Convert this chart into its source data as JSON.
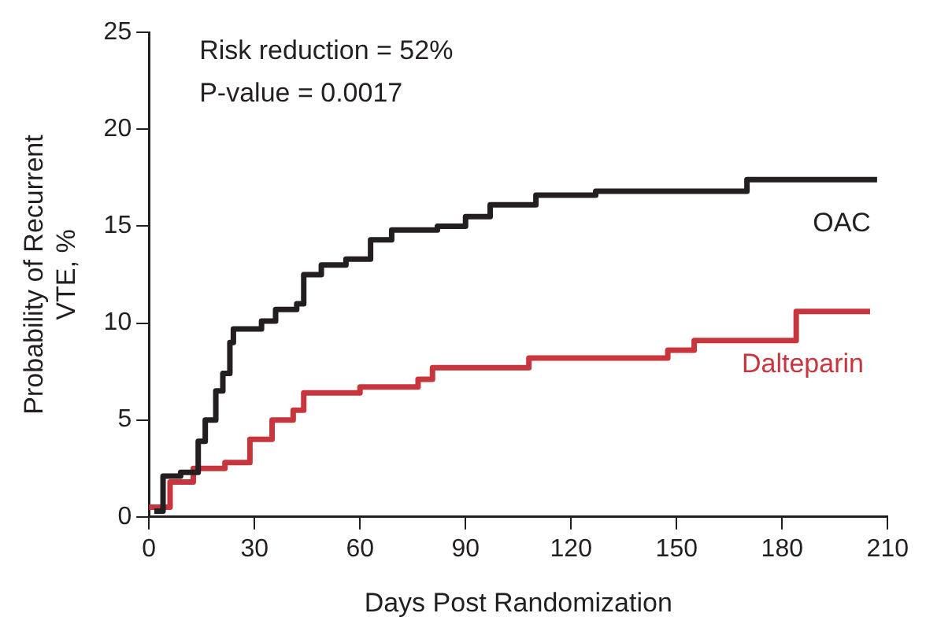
{
  "chart_data": {
    "type": "step",
    "xlabel": "Days Post Randomization",
    "ylabel": "Probability of Recurrent VTE, %",
    "annotations": [
      "Risk reduction = 52%",
      "P-value = 0.0017"
    ],
    "xlim": [
      0,
      210
    ],
    "xticks": [
      0,
      30,
      60,
      90,
      120,
      150,
      180,
      210
    ],
    "ylim": [
      0,
      25
    ],
    "yticks": [
      0,
      5,
      10,
      15,
      20,
      25
    ],
    "grid": false,
    "legend": false,
    "series": [
      {
        "name": "OAC",
        "color": "#231f20",
        "x": [
          1.5,
          4,
          9,
          14,
          16,
          19,
          21,
          23,
          24,
          32,
          36,
          42,
          44,
          49,
          56,
          63,
          69,
          82,
          90,
          97,
          110,
          127,
          170,
          207
        ],
        "values": [
          0.3,
          2.1,
          2.3,
          3.9,
          5,
          6.5,
          7.4,
          9,
          9.7,
          10.1,
          10.7,
          11,
          12.5,
          13,
          13.3,
          14.3,
          14.8,
          15,
          15.5,
          16.1,
          16.6,
          16.8,
          17.4,
          17.4
        ]
      },
      {
        "name": "Dalteparin",
        "color": "#c8363d",
        "x": [
          0,
          6,
          12.6,
          21.6,
          28.7,
          35,
          41,
          44,
          60,
          76.5,
          80.6,
          108,
          147.5,
          155,
          184,
          205
        ],
        "values": [
          0.5,
          1.8,
          2.5,
          2.8,
          4,
          5,
          5.5,
          6.4,
          6.7,
          7.1,
          7.7,
          8.2,
          8.6,
          9.1,
          10.6,
          10.6
        ]
      }
    ]
  }
}
